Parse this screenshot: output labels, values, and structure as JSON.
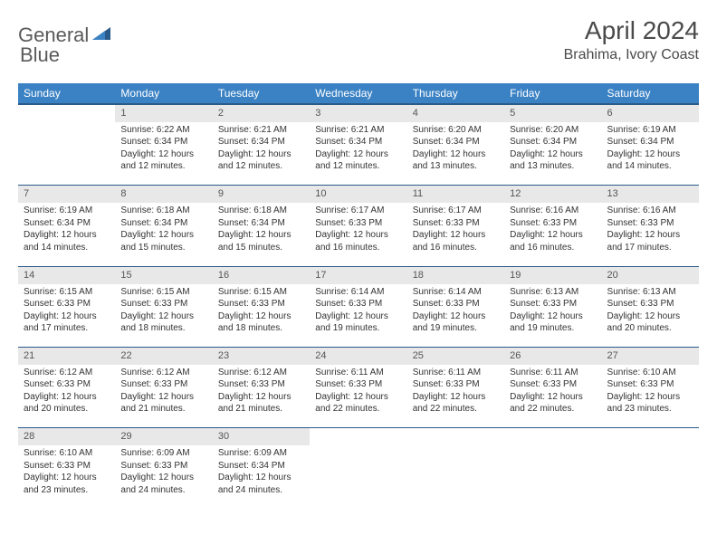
{
  "logo": {
    "text1": "General",
    "text2": "Blue"
  },
  "title": "April 2024",
  "location": "Brahima, Ivory Coast",
  "header_color": "#3b82c4",
  "header_border_color": "#2a5a8a",
  "daynum_bg": "#e8e8e8",
  "text_color": "#333333",
  "days_of_week": [
    "Sunday",
    "Monday",
    "Tuesday",
    "Wednesday",
    "Thursday",
    "Friday",
    "Saturday"
  ],
  "first_weekday_index": 1,
  "num_days": 30,
  "cells": [
    {
      "n": 1,
      "sunrise": "6:22 AM",
      "sunset": "6:34 PM",
      "daylight": "12 hours and 12 minutes."
    },
    {
      "n": 2,
      "sunrise": "6:21 AM",
      "sunset": "6:34 PM",
      "daylight": "12 hours and 12 minutes."
    },
    {
      "n": 3,
      "sunrise": "6:21 AM",
      "sunset": "6:34 PM",
      "daylight": "12 hours and 12 minutes."
    },
    {
      "n": 4,
      "sunrise": "6:20 AM",
      "sunset": "6:34 PM",
      "daylight": "12 hours and 13 minutes."
    },
    {
      "n": 5,
      "sunrise": "6:20 AM",
      "sunset": "6:34 PM",
      "daylight": "12 hours and 13 minutes."
    },
    {
      "n": 6,
      "sunrise": "6:19 AM",
      "sunset": "6:34 PM",
      "daylight": "12 hours and 14 minutes."
    },
    {
      "n": 7,
      "sunrise": "6:19 AM",
      "sunset": "6:34 PM",
      "daylight": "12 hours and 14 minutes."
    },
    {
      "n": 8,
      "sunrise": "6:18 AM",
      "sunset": "6:34 PM",
      "daylight": "12 hours and 15 minutes."
    },
    {
      "n": 9,
      "sunrise": "6:18 AM",
      "sunset": "6:34 PM",
      "daylight": "12 hours and 15 minutes."
    },
    {
      "n": 10,
      "sunrise": "6:17 AM",
      "sunset": "6:33 PM",
      "daylight": "12 hours and 16 minutes."
    },
    {
      "n": 11,
      "sunrise": "6:17 AM",
      "sunset": "6:33 PM",
      "daylight": "12 hours and 16 minutes."
    },
    {
      "n": 12,
      "sunrise": "6:16 AM",
      "sunset": "6:33 PM",
      "daylight": "12 hours and 16 minutes."
    },
    {
      "n": 13,
      "sunrise": "6:16 AM",
      "sunset": "6:33 PM",
      "daylight": "12 hours and 17 minutes."
    },
    {
      "n": 14,
      "sunrise": "6:15 AM",
      "sunset": "6:33 PM",
      "daylight": "12 hours and 17 minutes."
    },
    {
      "n": 15,
      "sunrise": "6:15 AM",
      "sunset": "6:33 PM",
      "daylight": "12 hours and 18 minutes."
    },
    {
      "n": 16,
      "sunrise": "6:15 AM",
      "sunset": "6:33 PM",
      "daylight": "12 hours and 18 minutes."
    },
    {
      "n": 17,
      "sunrise": "6:14 AM",
      "sunset": "6:33 PM",
      "daylight": "12 hours and 19 minutes."
    },
    {
      "n": 18,
      "sunrise": "6:14 AM",
      "sunset": "6:33 PM",
      "daylight": "12 hours and 19 minutes."
    },
    {
      "n": 19,
      "sunrise": "6:13 AM",
      "sunset": "6:33 PM",
      "daylight": "12 hours and 19 minutes."
    },
    {
      "n": 20,
      "sunrise": "6:13 AM",
      "sunset": "6:33 PM",
      "daylight": "12 hours and 20 minutes."
    },
    {
      "n": 21,
      "sunrise": "6:12 AM",
      "sunset": "6:33 PM",
      "daylight": "12 hours and 20 minutes."
    },
    {
      "n": 22,
      "sunrise": "6:12 AM",
      "sunset": "6:33 PM",
      "daylight": "12 hours and 21 minutes."
    },
    {
      "n": 23,
      "sunrise": "6:12 AM",
      "sunset": "6:33 PM",
      "daylight": "12 hours and 21 minutes."
    },
    {
      "n": 24,
      "sunrise": "6:11 AM",
      "sunset": "6:33 PM",
      "daylight": "12 hours and 22 minutes."
    },
    {
      "n": 25,
      "sunrise": "6:11 AM",
      "sunset": "6:33 PM",
      "daylight": "12 hours and 22 minutes."
    },
    {
      "n": 26,
      "sunrise": "6:11 AM",
      "sunset": "6:33 PM",
      "daylight": "12 hours and 22 minutes."
    },
    {
      "n": 27,
      "sunrise": "6:10 AM",
      "sunset": "6:33 PM",
      "daylight": "12 hours and 23 minutes."
    },
    {
      "n": 28,
      "sunrise": "6:10 AM",
      "sunset": "6:33 PM",
      "daylight": "12 hours and 23 minutes."
    },
    {
      "n": 29,
      "sunrise": "6:09 AM",
      "sunset": "6:33 PM",
      "daylight": "12 hours and 24 minutes."
    },
    {
      "n": 30,
      "sunrise": "6:09 AM",
      "sunset": "6:34 PM",
      "daylight": "12 hours and 24 minutes."
    }
  ],
  "labels": {
    "sunrise": "Sunrise:",
    "sunset": "Sunset:",
    "daylight": "Daylight:"
  }
}
